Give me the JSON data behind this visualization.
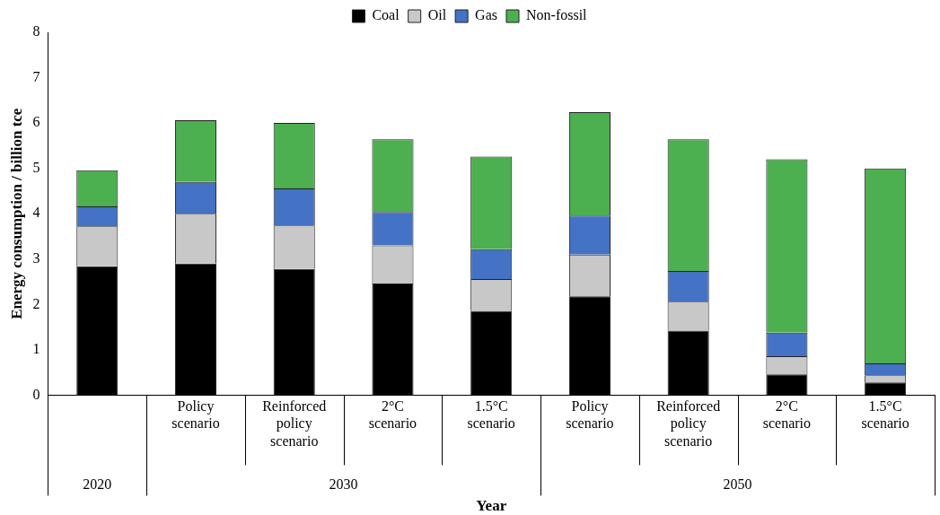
{
  "chart_data": {
    "type": "bar",
    "stacked": true,
    "xlabel": "Year",
    "ylabel": "Energy consumption / billion tce",
    "categories": [
      null,
      "Policy scenario",
      "Reinforced policy scenario",
      "2°C scenario",
      "1.5°C scenario",
      "Policy scenario",
      "Reinforced policy scenario",
      "2°C scenario",
      "1.5°C scenario"
    ],
    "series": [
      {
        "name": "Coal",
        "color": "#000000",
        "values": [
          2.84,
          2.9,
          2.78,
          2.46,
          1.86,
          2.18,
          1.42,
          0.46,
          0.28
        ]
      },
      {
        "name": "Oil",
        "color": "#c8c8c8",
        "values": [
          0.88,
          1.1,
          0.96,
          0.84,
          0.7,
          0.92,
          0.64,
          0.4,
          0.16
        ]
      },
      {
        "name": "Gas",
        "color": "#4472c4",
        "values": [
          0.44,
          0.7,
          0.82,
          0.74,
          0.66,
          0.86,
          0.68,
          0.52,
          0.26
        ]
      },
      {
        "name": "Non-fossil",
        "color": "#4caf50",
        "values": [
          0.8,
          1.36,
          1.44,
          1.6,
          2.04,
          2.28,
          2.9,
          3.82,
          4.3
        ]
      }
    ],
    "ylim": [
      0,
      8
    ],
    "yticks": [
      0,
      1,
      2,
      3,
      4,
      5,
      6,
      7,
      8
    ],
    "annotations": [
      "2020",
      "2030",
      "2050"
    ],
    "legend": "top",
    "grid": false
  }
}
